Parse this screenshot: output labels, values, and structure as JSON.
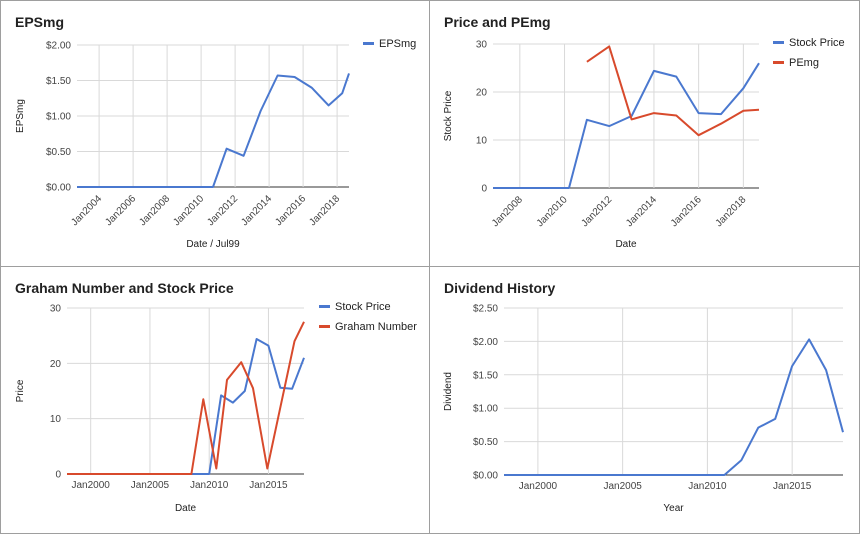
{
  "colors": {
    "blue": "#4a78cf",
    "red": "#d84a2c",
    "grid": "#d9d9d9",
    "axis": "#333333"
  },
  "chart_data": [
    {
      "type": "line",
      "title": "EPSmg",
      "xlabel": "Date / Jul99",
      "ylabel": "EPSmg",
      "x_ticks": [
        "Jan2004",
        "Jan2006",
        "Jan2008",
        "Jan2010",
        "Jan2012",
        "Jan2014",
        "Jan2016",
        "Jan2018"
      ],
      "y_ticks": [
        "$0.00",
        "$0.50",
        "$1.00",
        "$1.50",
        "$2.00"
      ],
      "xlim": [
        2002.7,
        2018.7
      ],
      "ylim": [
        0,
        2
      ],
      "legend": "right",
      "series": [
        {
          "name": "EPSmg",
          "color": "#4a78cf",
          "points": [
            [
              2002.7,
              0
            ],
            [
              2004,
              0
            ],
            [
              2006,
              0
            ],
            [
              2008,
              0
            ],
            [
              2010,
              0
            ],
            [
              2010.7,
              0
            ],
            [
              2011.5,
              0.54
            ],
            [
              2012.5,
              0.44
            ],
            [
              2013.5,
              1.07
            ],
            [
              2014.5,
              1.57
            ],
            [
              2015.5,
              1.55
            ],
            [
              2016.5,
              1.4
            ],
            [
              2017.5,
              1.15
            ],
            [
              2018.3,
              1.32
            ],
            [
              2018.7,
              1.6
            ]
          ]
        }
      ]
    },
    {
      "type": "line",
      "title": "Price and PEmg",
      "xlabel": "Date",
      "ylabel": "Stock Price",
      "x_ticks": [
        "Jan2008",
        "Jan2010",
        "Jan2012",
        "Jan2014",
        "Jan2016",
        "Jan2018"
      ],
      "y_ticks": [
        "0",
        "10",
        "20",
        "30"
      ],
      "xlim": [
        2006.8,
        2018.7
      ],
      "ylim": [
        0,
        30
      ],
      "legend": "right",
      "series": [
        {
          "name": "Stock Price",
          "color": "#4a78cf",
          "points": [
            [
              2006.8,
              0
            ],
            [
              2008,
              0
            ],
            [
              2009,
              0
            ],
            [
              2010.2,
              0
            ],
            [
              2011,
              14.2
            ],
            [
              2012,
              12.9
            ],
            [
              2013,
              15
            ],
            [
              2014,
              24.4
            ],
            [
              2015,
              23.2
            ],
            [
              2016,
              15.6
            ],
            [
              2017,
              15.4
            ],
            [
              2018,
              20.8
            ],
            [
              2018.7,
              26
            ]
          ]
        },
        {
          "name": "PEmg",
          "color": "#d84a2c",
          "points": [
            [
              2011,
              26.3
            ],
            [
              2012,
              29.5
            ],
            [
              2013,
              14.3
            ],
            [
              2014,
              15.6
            ],
            [
              2015,
              15.1
            ],
            [
              2016,
              11
            ],
            [
              2017,
              13.4
            ],
            [
              2018,
              16.1
            ],
            [
              2018.7,
              16.3
            ]
          ]
        }
      ]
    },
    {
      "type": "line",
      "title": "Graham Number and Stock Price",
      "xlabel": "Date",
      "ylabel": "Price",
      "x_ticks": [
        "Jan2000",
        "Jan2005",
        "Jan2010",
        "Jan2015"
      ],
      "y_ticks": [
        "0",
        "10",
        "20",
        "30"
      ],
      "xlim": [
        1998,
        2018
      ],
      "ylim": [
        0,
        30
      ],
      "legend": "right",
      "series": [
        {
          "name": "Stock Price",
          "color": "#4a78cf",
          "points": [
            [
              1998,
              0
            ],
            [
              2000,
              0
            ],
            [
              2005,
              0
            ],
            [
              2009,
              0
            ],
            [
              2010,
              0
            ],
            [
              2011,
              14.2
            ],
            [
              2012,
              12.9
            ],
            [
              2013,
              15
            ],
            [
              2014,
              24.4
            ],
            [
              2015,
              23.2
            ],
            [
              2016,
              15.6
            ],
            [
              2017,
              15.4
            ],
            [
              2018,
              21
            ]
          ]
        },
        {
          "name": "Graham Number",
          "color": "#d84a2c",
          "points": [
            [
              1998,
              0
            ],
            [
              2000,
              0
            ],
            [
              2005,
              0
            ],
            [
              2008.5,
              0
            ],
            [
              2009.5,
              13.5
            ],
            [
              2010.6,
              1
            ],
            [
              2011.5,
              17
            ],
            [
              2012.7,
              20.2
            ],
            [
              2013.7,
              15.5
            ],
            [
              2014.9,
              1
            ],
            [
              2016,
              12
            ],
            [
              2017.2,
              24
            ],
            [
              2018,
              27.5
            ]
          ]
        }
      ]
    },
    {
      "type": "line",
      "title": "Dividend History",
      "xlabel": "Year",
      "ylabel": "Dividend",
      "x_ticks": [
        "Jan2000",
        "Jan2005",
        "Jan2010",
        "Jan2015"
      ],
      "y_ticks": [
        "$0.00",
        "$0.50",
        "$1.00",
        "$1.50",
        "$2.00",
        "$2.50"
      ],
      "xlim": [
        1998,
        2018
      ],
      "ylim": [
        0,
        2.5
      ],
      "legend": "none",
      "series": [
        {
          "name": "",
          "color": "#4a78cf",
          "points": [
            [
              1998,
              0
            ],
            [
              2000,
              0
            ],
            [
              2005,
              0
            ],
            [
              2010,
              0
            ],
            [
              2011,
              0
            ],
            [
              2012,
              0.22
            ],
            [
              2013,
              0.71
            ],
            [
              2014,
              0.84
            ],
            [
              2015,
              1.63
            ],
            [
              2016,
              2.03
            ],
            [
              2017,
              1.57
            ],
            [
              2018,
              0.64
            ]
          ]
        }
      ]
    }
  ]
}
